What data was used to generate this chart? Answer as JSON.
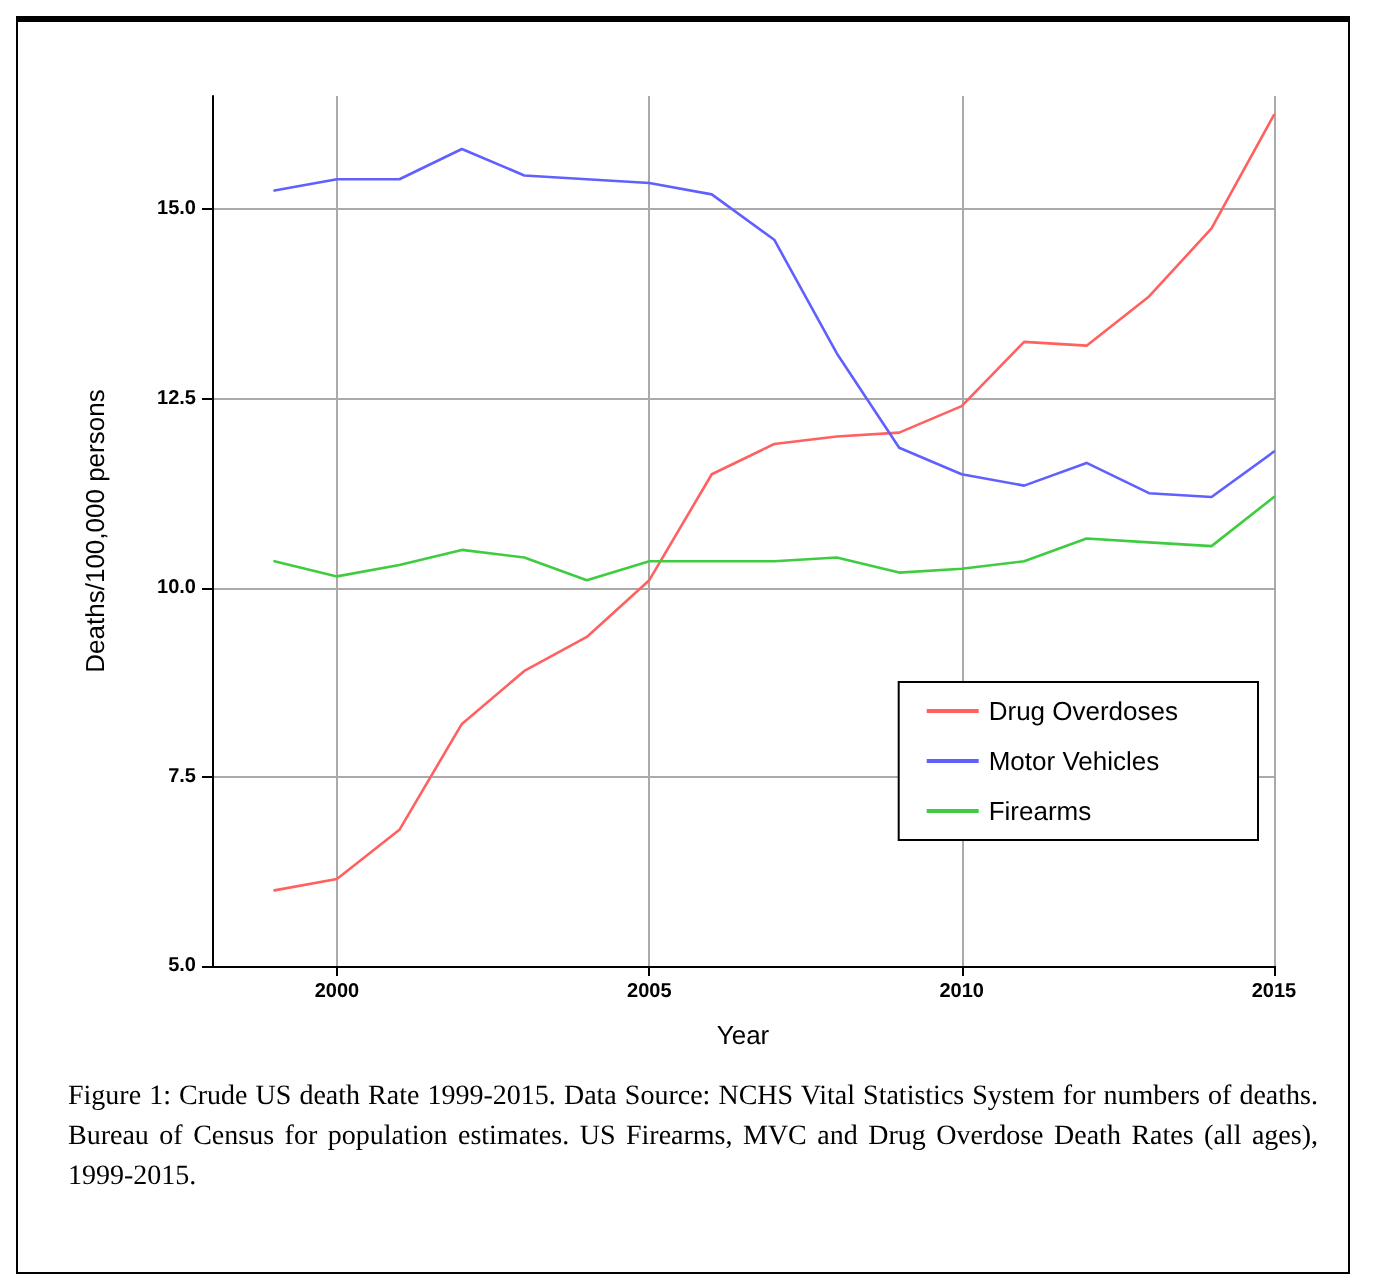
{
  "chart_data": {
    "type": "line",
    "xlabel": "Year",
    "ylabel": "Deaths/100,000 persons",
    "x": [
      1999,
      2000,
      2001,
      2002,
      2003,
      2004,
      2005,
      2006,
      2007,
      2008,
      2009,
      2010,
      2011,
      2012,
      2013,
      2014,
      2015
    ],
    "series": [
      {
        "name": "Drug Overdoses",
        "color": "#ff6060",
        "values": [
          6.0,
          6.15,
          6.8,
          8.2,
          8.9,
          9.35,
          10.1,
          11.5,
          11.9,
          12.0,
          12.05,
          12.4,
          13.25,
          13.2,
          13.85,
          14.75,
          16.25
        ]
      },
      {
        "name": "Motor Vehicles",
        "color": "#6060ff",
        "values": [
          15.25,
          15.4,
          15.4,
          15.8,
          15.45,
          15.4,
          15.35,
          15.2,
          14.6,
          13.1,
          11.85,
          11.5,
          11.35,
          11.65,
          11.25,
          11.2,
          11.8
        ]
      },
      {
        "name": "Firearms",
        "color": "#40cc40",
        "values": [
          10.35,
          10.15,
          10.3,
          10.5,
          10.4,
          10.1,
          10.35,
          10.35,
          10.35,
          10.4,
          10.2,
          10.25,
          10.35,
          10.65,
          10.6,
          10.55,
          11.2
        ]
      }
    ],
    "xlim": [
      1998,
      2015
    ],
    "xticks": [
      2000,
      2005,
      2010,
      2015
    ],
    "ylim": [
      5,
      16.5
    ],
    "yticks": [
      {
        "value": 5,
        "label": "5.0"
      },
      {
        "value": 7.5,
        "label": "7.5"
      },
      {
        "value": 10,
        "label": "10.0"
      },
      {
        "value": 12.5,
        "label": "12.5"
      },
      {
        "value": 15,
        "label": "15.0"
      }
    ],
    "grid": true,
    "legend": "right",
    "marker": "none",
    "line_style": "solid",
    "annotations": [
      "Figure 1: Crude US death Rate 1999-2015. Data Source: NCHS Vital Statistics System for numbers of deaths. Bureau of Census for population estimates. US Firearms, MVC and Drug Overdose Death Rates (all ages), 1999-2015."
    ]
  }
}
